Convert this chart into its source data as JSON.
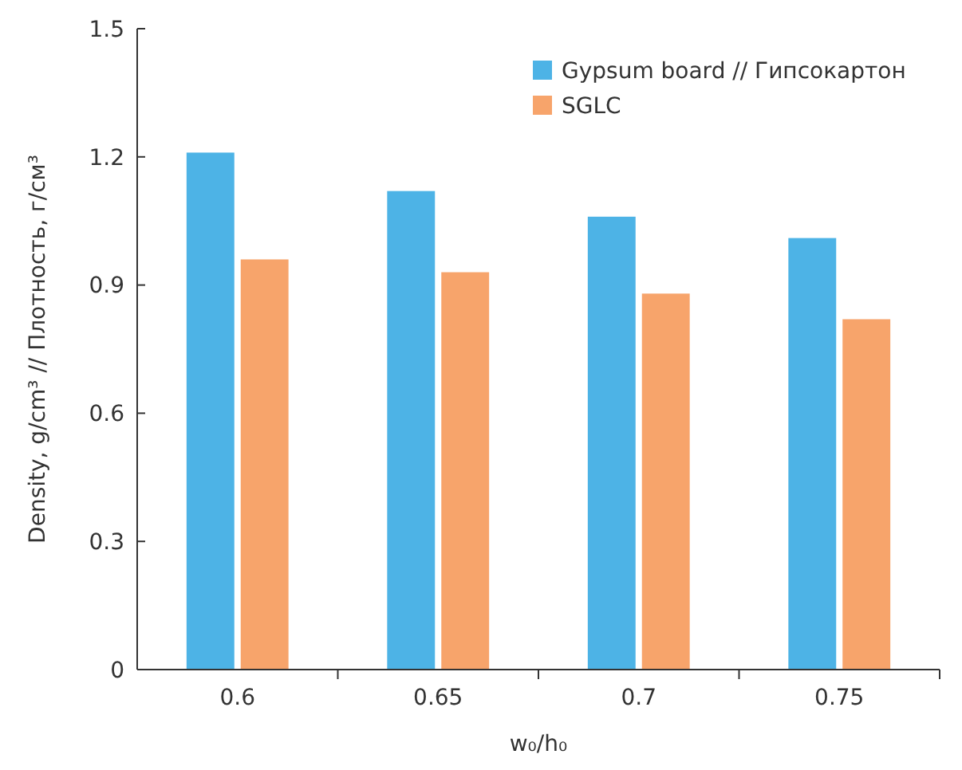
{
  "chart_data": {
    "type": "bar",
    "xlabel": "w₀/h₀",
    "ylabel": "Density, g/cm³ // Плотность, г/см³",
    "categories": [
      "0.6",
      "0.65",
      "0.7",
      "0.75"
    ],
    "series": [
      {
        "name": "Gypsum board // Гипсокартон",
        "color": "#4db3e6",
        "values": [
          1.21,
          1.12,
          1.06,
          1.01
        ]
      },
      {
        "name": "SGLC",
        "color": "#f7a46b",
        "values": [
          0.96,
          0.93,
          0.88,
          0.82
        ]
      }
    ],
    "ylim": [
      0,
      1.5
    ],
    "yticks": [
      0,
      0.3,
      0.6,
      0.9,
      1.2,
      1.5
    ],
    "grid": false,
    "legend": "top right"
  }
}
